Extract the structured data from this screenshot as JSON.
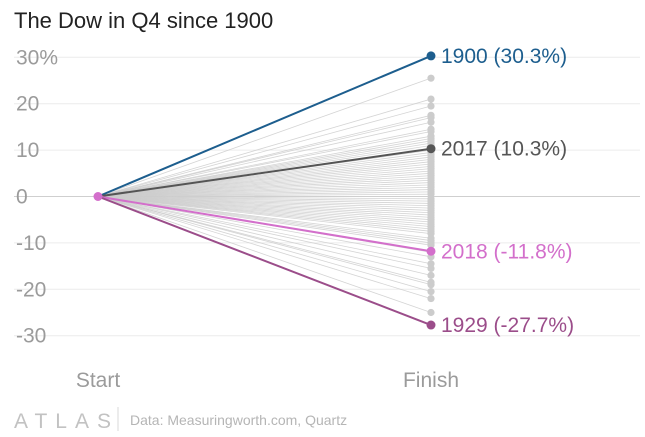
{
  "chart_data": {
    "type": "line",
    "title": "The Dow in Q4 since 1900",
    "x": [
      "Start",
      "Finish"
    ],
    "yticks": [
      "30%",
      "20",
      "10",
      "0",
      "-10",
      "-20",
      "-30"
    ],
    "ytick_values": [
      30,
      20,
      10,
      0,
      -10,
      -20,
      -30
    ],
    "ylim": [
      -33,
      33
    ],
    "grid": true,
    "background_series_color": "#cccccc",
    "background_finish_values": [
      25.5,
      21,
      19.5,
      17.5,
      17,
      16,
      14.5,
      14,
      13,
      12.5,
      12,
      11.5,
      11,
      10,
      9.5,
      9,
      8.5,
      8,
      7.5,
      7,
      6.5,
      6,
      5.5,
      5,
      4.5,
      4,
      3.5,
      3,
      2.5,
      2,
      1.5,
      1,
      0.5,
      -0.5,
      -1,
      -1.5,
      -2,
      -2.5,
      -3,
      -3.5,
      -4,
      -4.5,
      -5,
      -5.5,
      -6,
      -6.5,
      -7,
      -7.5,
      -8,
      -9,
      -9.5,
      -10,
      -10.5,
      -12,
      -13,
      -14.5,
      -15.5,
      -17,
      -18.5,
      -19,
      -20.5,
      -22,
      -25
    ],
    "highlighted_series": [
      {
        "name": "1900",
        "values": [
          0,
          30.3
        ],
        "label": "1900 (30.3%)",
        "color": "#1d5e8e"
      },
      {
        "name": "2017",
        "values": [
          0,
          10.3
        ],
        "label": "2017 (10.3%)",
        "color": "#555555"
      },
      {
        "name": "2018",
        "values": [
          0,
          -11.8
        ],
        "label": "2018 (-11.8%)",
        "color": "#d36fcb"
      },
      {
        "name": "1929",
        "values": [
          0,
          -27.7
        ],
        "label": "1929 (-27.7%)",
        "color": "#9b4d8a"
      }
    ],
    "start_dot_color": "#d36fcb"
  },
  "footer": {
    "brand": "ATLAS",
    "source": "Data: Measuringworth.com, Quartz"
  }
}
